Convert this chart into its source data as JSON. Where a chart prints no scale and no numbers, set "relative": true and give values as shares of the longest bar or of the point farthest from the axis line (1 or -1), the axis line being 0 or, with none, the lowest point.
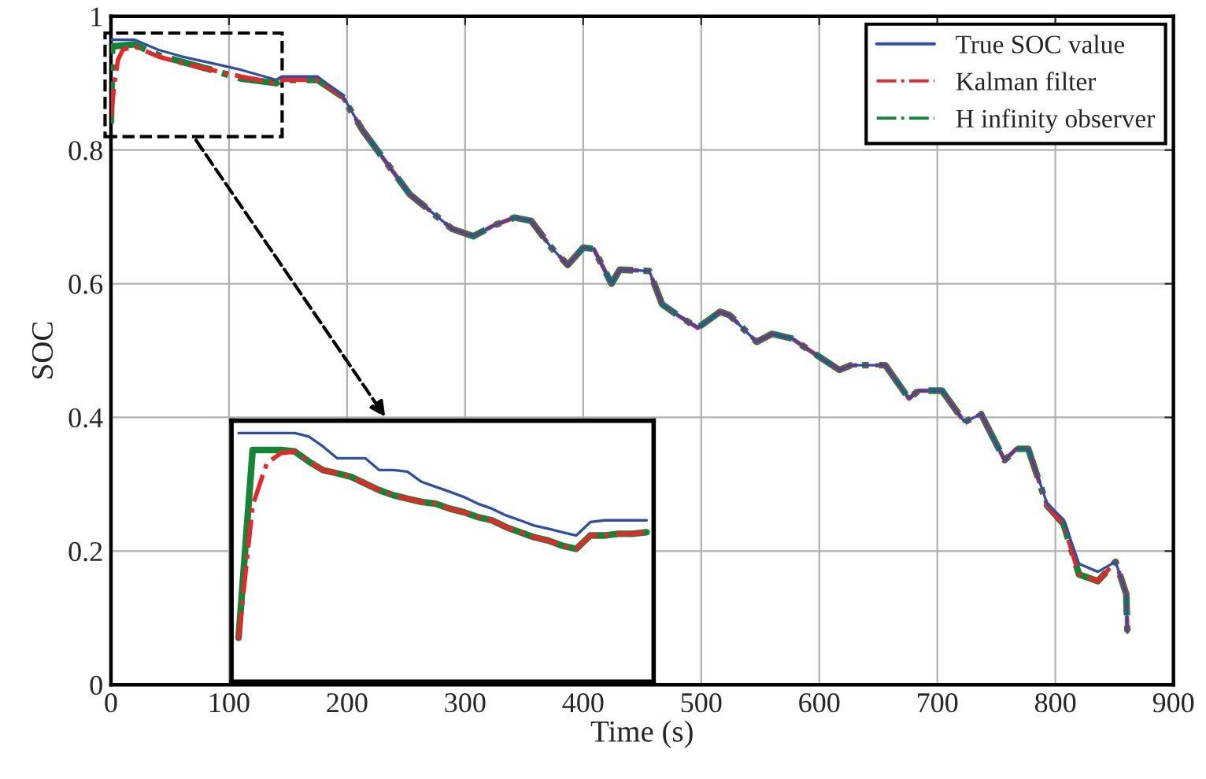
{
  "chart_data": [
    {
      "type": "line",
      "xlabel": "Time (s)",
      "ylabel": "SOC",
      "xlim": [
        0,
        900
      ],
      "ylim": [
        0,
        1
      ],
      "xticks": [
        0,
        100,
        200,
        300,
        400,
        500,
        600,
        700,
        800,
        900
      ],
      "yticks": [
        0,
        0.2,
        0.4,
        0.6,
        0.8,
        1
      ],
      "grid": true,
      "legend": "top right",
      "series": [
        {
          "name": "True SOC value",
          "color": "#2e4fa8",
          "line_style": "solid",
          "x": [
            0,
            20,
            40,
            60,
            85,
            110,
            140,
            145,
            175,
            196,
            213,
            253,
            289,
            307,
            324,
            342,
            356,
            373,
            387,
            400,
            409,
            424,
            431,
            456,
            467,
            480,
            497,
            516,
            524,
            547,
            560,
            577,
            591,
            617,
            627,
            656,
            676,
            684,
            704,
            723,
            737,
            757,
            767,
            777,
            793,
            807,
            820,
            836,
            851,
            860,
            861
          ],
          "values": [
            0.965,
            0.965,
            0.95,
            0.94,
            0.93,
            0.92,
            0.905,
            0.91,
            0.91,
            0.882,
            0.83,
            0.734,
            0.682,
            0.671,
            0.687,
            0.699,
            0.694,
            0.654,
            0.628,
            0.654,
            0.652,
            0.6,
            0.621,
            0.619,
            0.569,
            0.553,
            0.534,
            0.558,
            0.553,
            0.513,
            0.525,
            0.518,
            0.501,
            0.471,
            0.478,
            0.478,
            0.428,
            0.44,
            0.44,
            0.393,
            0.405,
            0.336,
            0.353,
            0.353,
            0.271,
            0.247,
            0.181,
            0.169,
            0.184,
            0.136,
            0.078
          ]
        },
        {
          "name": "Kalman filter",
          "color": "#e8262a",
          "line_style": "dashdot",
          "x": [
            0,
            3,
            6,
            10,
            20,
            40,
            60,
            85,
            110,
            140,
            145,
            175,
            196,
            213,
            253,
            289,
            307,
            324,
            342,
            356,
            373,
            387,
            400,
            409,
            424,
            431,
            456,
            467,
            480,
            497,
            516,
            524,
            547,
            560,
            577,
            591,
            617,
            627,
            656,
            676,
            684,
            704,
            723,
            737,
            757,
            767,
            777,
            793,
            807,
            820,
            836,
            851,
            860,
            861
          ],
          "values": [
            0.85,
            0.9,
            0.935,
            0.95,
            0.955,
            0.94,
            0.93,
            0.92,
            0.91,
            0.9,
            0.905,
            0.905,
            0.88,
            0.83,
            0.734,
            0.682,
            0.671,
            0.687,
            0.699,
            0.694,
            0.654,
            0.628,
            0.654,
            0.652,
            0.6,
            0.621,
            0.619,
            0.569,
            0.553,
            0.534,
            0.558,
            0.553,
            0.513,
            0.525,
            0.518,
            0.501,
            0.471,
            0.478,
            0.478,
            0.428,
            0.44,
            0.44,
            0.393,
            0.405,
            0.336,
            0.353,
            0.353,
            0.268,
            0.24,
            0.165,
            0.155,
            0.184,
            0.136,
            0.078
          ]
        },
        {
          "name": "H infinity observer",
          "color": "#138535",
          "line_style": "dashdot",
          "x": [
            0,
            1,
            20,
            40,
            60,
            85,
            110,
            140,
            145,
            175,
            196,
            213,
            253,
            289,
            307,
            324,
            342,
            356,
            373,
            387,
            400,
            409,
            424,
            431,
            456,
            467,
            480,
            497,
            516,
            524,
            547,
            560,
            577,
            591,
            617,
            627,
            656,
            676,
            684,
            704,
            723,
            737,
            757,
            767,
            777,
            793,
            807,
            820,
            836,
            851,
            860,
            861
          ],
          "values": [
            0.84,
            0.955,
            0.958,
            0.942,
            0.932,
            0.92,
            0.907,
            0.9,
            0.905,
            0.905,
            0.88,
            0.83,
            0.734,
            0.682,
            0.671,
            0.687,
            0.699,
            0.694,
            0.654,
            0.628,
            0.654,
            0.652,
            0.6,
            0.621,
            0.619,
            0.569,
            0.553,
            0.534,
            0.558,
            0.553,
            0.513,
            0.525,
            0.518,
            0.501,
            0.471,
            0.478,
            0.478,
            0.428,
            0.44,
            0.44,
            0.393,
            0.405,
            0.336,
            0.353,
            0.353,
            0.268,
            0.24,
            0.165,
            0.155,
            0.184,
            0.136,
            0.08
          ]
        }
      ]
    },
    {
      "type": "line",
      "relative": true,
      "grid": false,
      "categories": [
        null,
        null,
        null,
        null,
        null,
        null,
        null,
        null,
        null,
        null,
        null,
        null,
        null,
        null,
        null,
        null,
        null,
        null,
        null,
        null,
        null,
        null,
        null,
        null,
        null,
        null,
        null,
        null,
        null,
        null
      ],
      "series": [
        {
          "color": "#2e4fa8",
          "line_style": "solid",
          "values": [
            1,
            1,
            1,
            1,
            1,
            0.986,
            0.946,
            0.899,
            0.899,
            0.899,
            0.851,
            0.851,
            0.845,
            0.804,
            0.784,
            0.764,
            0.743,
            0.716,
            0.696,
            0.669,
            0.649,
            0.628,
            0.615,
            0.601,
            0.588,
            0.642,
            0.649,
            0.649,
            0.649,
            0.649
          ]
        },
        {
          "color": "#e8262a",
          "line_style": "dashdot",
          "values": [
            0.169,
            0.709,
            0.878,
            0.919,
            0.926,
            0.885,
            0.851,
            0.838,
            0.824,
            0.797,
            0.77,
            0.75,
            0.736,
            0.723,
            0.716,
            0.696,
            0.682,
            0.662,
            0.649,
            0.622,
            0.601,
            0.581,
            0.568,
            0.547,
            0.534,
            0.588,
            0.588,
            0.595,
            0.595,
            0.601
          ]
        },
        {
          "color": "#138535",
          "line_style": "solid",
          "values": [
            0.176,
            0.932,
            0.932,
            0.932,
            0.926,
            0.885,
            0.851,
            0.838,
            0.824,
            0.797,
            0.77,
            0.75,
            0.736,
            0.723,
            0.716,
            0.696,
            0.682,
            0.662,
            0.649,
            0.622,
            0.601,
            0.581,
            0.568,
            0.547,
            0.534,
            0.588,
            0.588,
            0.595,
            0.595,
            0.601
          ]
        }
      ]
    }
  ]
}
